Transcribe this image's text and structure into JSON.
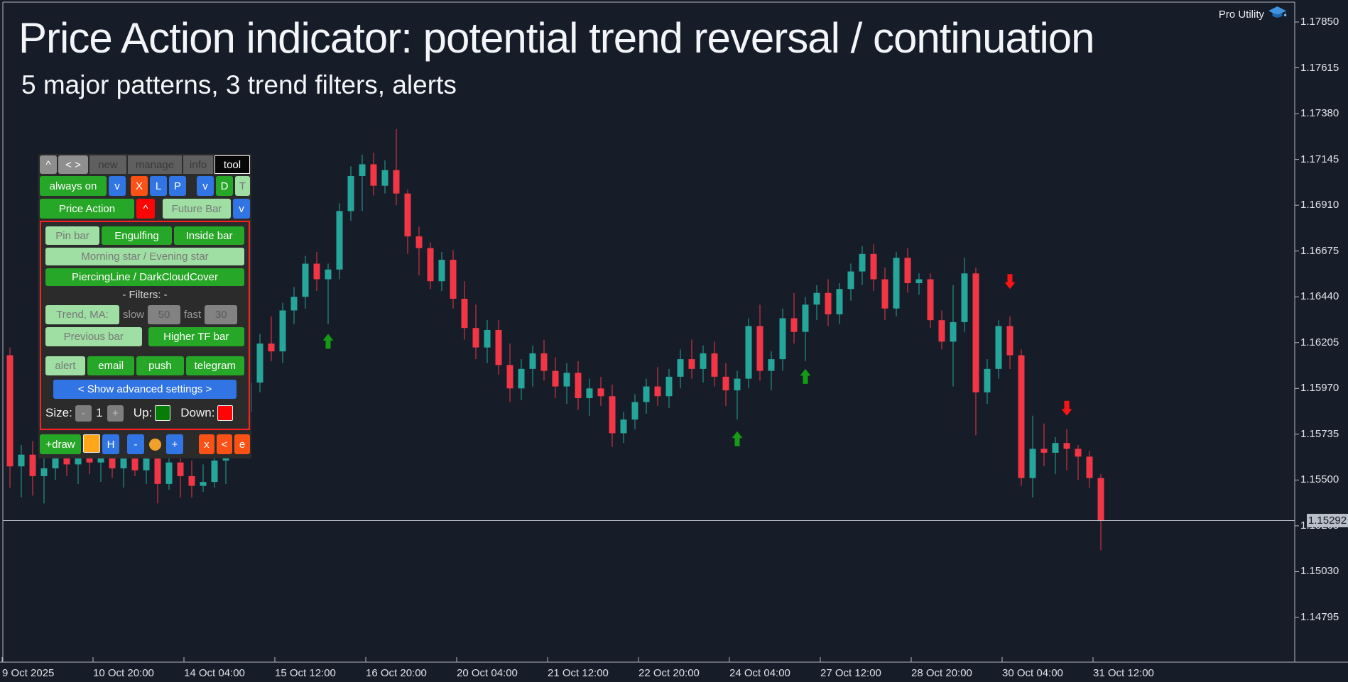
{
  "header": {
    "title": "Price Action indicator: potential trend reversal / continuation",
    "subtitle": "5 major patterns, 3 trend filters, alerts"
  },
  "watermark": {
    "label": "Pro Utility"
  },
  "panel": {
    "nav": {
      "collapse": "^",
      "move": "< >",
      "tab_new": "new",
      "tab_manage": "manage",
      "tab_info": "info",
      "tab_tool": "tool"
    },
    "toggles": {
      "always_on": "always on",
      "dd1": "v",
      "x": "X",
      "l": "L",
      "p": "P",
      "dd2": "v",
      "d": "D",
      "t": "T"
    },
    "main": {
      "price_action": "Price Action",
      "collapse": "^",
      "future_bar": "Future Bar",
      "dd": "v"
    },
    "patterns": {
      "pin_bar": "Pin bar",
      "engulfing": "Engulfing",
      "inside_bar": "Inside bar",
      "morning_evening_star": "Morning star / Evening star",
      "piercing_darkcloud": "PiercingLine / DarkCloudCover"
    },
    "filters": {
      "heading": "-  Filters:  -",
      "trend_ma": "Trend, MA:",
      "slow_label": "slow",
      "slow_value": "50",
      "fast_label": "fast",
      "fast_value": "30",
      "previous_bar": "Previous bar",
      "higher_tf": "Higher TF bar"
    },
    "alerts": {
      "alert": "alert",
      "email": "email",
      "push": "push",
      "telegram": "telegram"
    },
    "advanced_label": "< Show advanced settings >",
    "size_row": {
      "label": "Size:",
      "minus": "-",
      "value": "1",
      "plus": "+",
      "up_label": "Up:",
      "up_color": "#077d07",
      "down_label": "Down:",
      "down_color": "#ff0404"
    },
    "draw_row": {
      "draw": "+draw",
      "swatch_color": "#ffa718",
      "h": "H",
      "minus": "-",
      "dot_color": "#efa12c",
      "plus": "+",
      "x": "x",
      "back": "<",
      "e": "e"
    }
  },
  "chart_data": {
    "type": "candlestick",
    "view": {
      "price_top": 1.1785,
      "price_bottom": 1.14795
    },
    "price_axis": {
      "ticks": [
        "1.17850",
        "1.17615",
        "1.17380",
        "1.17145",
        "1.16910",
        "1.16675",
        "1.16440",
        "1.16205",
        "1.15970",
        "1.15735",
        "1.15500",
        "1.15265",
        "1.15030",
        "1.14795"
      ],
      "current_price": "1.15292"
    },
    "time_axis": {
      "ticks": [
        {
          "label": "9 Oct 2025",
          "index": 0
        },
        {
          "label": "10 Oct 20:00",
          "index": 8
        },
        {
          "label": "14 Oct 04:00",
          "index": 16
        },
        {
          "label": "15 Oct 12:00",
          "index": 24
        },
        {
          "label": "16 Oct 20:00",
          "index": 32
        },
        {
          "label": "20 Oct 04:00",
          "index": 40
        },
        {
          "label": "21 Oct 12:00",
          "index": 48
        },
        {
          "label": "22 Oct 20:00",
          "index": 56
        },
        {
          "label": "24 Oct 04:00",
          "index": 64
        },
        {
          "label": "27 Oct 12:00",
          "index": 72
        },
        {
          "label": "28 Oct 20:00",
          "index": 80
        },
        {
          "label": "30 Oct 04:00",
          "index": 88
        },
        {
          "label": "31 Oct 12:00",
          "index": 96
        }
      ]
    },
    "candles": [
      [
        1.1614,
        1.1618,
        1.1546,
        1.1557
      ],
      [
        1.1557,
        1.1568,
        1.1541,
        1.1563
      ],
      [
        1.1563,
        1.157,
        1.1542,
        1.1552
      ],
      [
        1.1552,
        1.1561,
        1.1538,
        1.1556
      ],
      [
        1.1556,
        1.1568,
        1.155,
        1.1562
      ],
      [
        1.1562,
        1.1572,
        1.1552,
        1.1558
      ],
      [
        1.1558,
        1.1566,
        1.1548,
        1.1563
      ],
      [
        1.1563,
        1.1571,
        1.1553,
        1.1559
      ],
      [
        1.1559,
        1.157,
        1.1549,
        1.1565
      ],
      [
        1.1565,
        1.1574,
        1.1551,
        1.1556
      ],
      [
        1.1556,
        1.1568,
        1.1546,
        1.1561
      ],
      [
        1.1561,
        1.157,
        1.1552,
        1.1555
      ],
      [
        1.1555,
        1.1566,
        1.1548,
        1.1561
      ],
      [
        1.1561,
        1.1568,
        1.1538,
        1.1548
      ],
      [
        1.1548,
        1.1563,
        1.1545,
        1.1559
      ],
      [
        1.1559,
        1.1567,
        1.1541,
        1.1552
      ],
      [
        1.1552,
        1.156,
        1.1541,
        1.1547
      ],
      [
        1.1547,
        1.1558,
        1.1544,
        1.1549
      ],
      [
        1.1549,
        1.1564,
        1.1546,
        1.156
      ],
      [
        1.156,
        1.1578,
        1.1548,
        1.1573
      ],
      [
        1.1573,
        1.159,
        1.1566,
        1.1585
      ],
      [
        1.1585,
        1.1605,
        1.158,
        1.16
      ],
      [
        1.16,
        1.1625,
        1.1595,
        1.162
      ],
      [
        1.162,
        1.1634,
        1.1611,
        1.1616
      ],
      [
        1.1616,
        1.1641,
        1.161,
        1.1637
      ],
      [
        1.1637,
        1.1649,
        1.163,
        1.1644
      ],
      [
        1.1644,
        1.1665,
        1.1638,
        1.1661
      ],
      [
        1.1661,
        1.1667,
        1.1647,
        1.1653
      ],
      [
        1.1653,
        1.1661,
        1.163,
        1.1658
      ],
      [
        1.1658,
        1.1692,
        1.1653,
        1.1688
      ],
      [
        1.1688,
        1.1711,
        1.1683,
        1.1706
      ],
      [
        1.1706,
        1.1717,
        1.1688,
        1.1712
      ],
      [
        1.1712,
        1.1718,
        1.1696,
        1.1701
      ],
      [
        1.1701,
        1.1714,
        1.1697,
        1.1709
      ],
      [
        1.1709,
        1.173,
        1.1691,
        1.1697
      ],
      [
        1.1697,
        1.1699,
        1.1666,
        1.1675
      ],
      [
        1.1675,
        1.168,
        1.1655,
        1.1669
      ],
      [
        1.1669,
        1.1672,
        1.1648,
        1.1652
      ],
      [
        1.1652,
        1.1667,
        1.1647,
        1.1663
      ],
      [
        1.1663,
        1.1668,
        1.1638,
        1.1643
      ],
      [
        1.1643,
        1.1652,
        1.1622,
        1.1628
      ],
      [
        1.1628,
        1.164,
        1.1612,
        1.1618
      ],
      [
        1.1618,
        1.1632,
        1.161,
        1.1627
      ],
      [
        1.1627,
        1.1632,
        1.1604,
        1.1609
      ],
      [
        1.1609,
        1.162,
        1.159,
        1.1597
      ],
      [
        1.1597,
        1.1612,
        1.1591,
        1.1607
      ],
      [
        1.1607,
        1.1619,
        1.1598,
        1.1615
      ],
      [
        1.1615,
        1.1622,
        1.1601,
        1.1606
      ],
      [
        1.1606,
        1.1613,
        1.1592,
        1.1598
      ],
      [
        1.1598,
        1.161,
        1.1589,
        1.1605
      ],
      [
        1.1605,
        1.1611,
        1.1586,
        1.1592
      ],
      [
        1.1592,
        1.1602,
        1.1583,
        1.1597
      ],
      [
        1.1597,
        1.1603,
        1.1588,
        1.1593
      ],
      [
        1.1593,
        1.1599,
        1.1567,
        1.1574
      ],
      [
        1.1574,
        1.1585,
        1.1569,
        1.1581
      ],
      [
        1.1581,
        1.1594,
        1.1576,
        1.159
      ],
      [
        1.159,
        1.1602,
        1.1584,
        1.1598
      ],
      [
        1.1598,
        1.1608,
        1.1588,
        1.1593
      ],
      [
        1.1593,
        1.1607,
        1.1587,
        1.1603
      ],
      [
        1.1603,
        1.1617,
        1.1597,
        1.1612
      ],
      [
        1.1612,
        1.1622,
        1.1602,
        1.1607
      ],
      [
        1.1607,
        1.1619,
        1.16,
        1.1615
      ],
      [
        1.1615,
        1.1621,
        1.1598,
        1.1603
      ],
      [
        1.1603,
        1.161,
        1.1588,
        1.1596
      ],
      [
        1.1596,
        1.1606,
        1.1581,
        1.1602
      ],
      [
        1.1602,
        1.1633,
        1.1597,
        1.1629
      ],
      [
        1.1629,
        1.164,
        1.1601,
        1.1606
      ],
      [
        1.1606,
        1.1616,
        1.1596,
        1.1612
      ],
      [
        1.1612,
        1.1638,
        1.1606,
        1.1633
      ],
      [
        1.1633,
        1.1646,
        1.162,
        1.1626
      ],
      [
        1.1626,
        1.1644,
        1.1611,
        1.164
      ],
      [
        1.164,
        1.165,
        1.1632,
        1.1646
      ],
      [
        1.1646,
        1.1653,
        1.1629,
        1.1635
      ],
      [
        1.1635,
        1.1651,
        1.163,
        1.1648
      ],
      [
        1.1648,
        1.1661,
        1.1642,
        1.1657
      ],
      [
        1.1657,
        1.167,
        1.165,
        1.1666
      ],
      [
        1.1666,
        1.1671,
        1.1647,
        1.1653
      ],
      [
        1.1653,
        1.1659,
        1.1632,
        1.1638
      ],
      [
        1.1638,
        1.1667,
        1.1634,
        1.1664
      ],
      [
        1.1664,
        1.1669,
        1.1646,
        1.1651
      ],
      [
        1.1651,
        1.1656,
        1.1645,
        1.1653
      ],
      [
        1.1653,
        1.1656,
        1.1628,
        1.1632
      ],
      [
        1.1632,
        1.1637,
        1.1617,
        1.1621
      ],
      [
        1.1621,
        1.165,
        1.1598,
        1.1631
      ],
      [
        1.1631,
        1.1664,
        1.1626,
        1.1656
      ],
      [
        1.1656,
        1.1659,
        1.1573,
        1.1595
      ],
      [
        1.1595,
        1.1612,
        1.1589,
        1.1607
      ],
      [
        1.1607,
        1.1632,
        1.1602,
        1.1629
      ],
      [
        1.1629,
        1.1634,
        1.1607,
        1.1614
      ],
      [
        1.1614,
        1.1617,
        1.1547,
        1.1551
      ],
      [
        1.1551,
        1.1583,
        1.1541,
        1.1566
      ],
      [
        1.1566,
        1.1579,
        1.1557,
        1.1564
      ],
      [
        1.1564,
        1.1572,
        1.1553,
        1.1569
      ],
      [
        1.1569,
        1.1576,
        1.1555,
        1.1566
      ],
      [
        1.1566,
        1.1568,
        1.155,
        1.1562
      ],
      [
        1.1562,
        1.1565,
        1.1546,
        1.1551
      ],
      [
        1.1551,
        1.1553,
        1.1514,
        1.1529
      ]
    ],
    "signals": [
      {
        "direction": "up",
        "index": 28,
        "price": 1.1625
      },
      {
        "direction": "up",
        "index": 64,
        "price": 1.1575
      },
      {
        "direction": "up",
        "index": 70,
        "price": 1.1607
      },
      {
        "direction": "down",
        "index": 88,
        "price": 1.1648
      },
      {
        "direction": "down",
        "index": 93,
        "price": 1.1583
      }
    ],
    "colors": {
      "up": "#26a69a",
      "down": "#f23645",
      "up_arrow": "#159b15",
      "down_arrow": "#fb1414",
      "frame": "#b4b8c0",
      "current_line": "#b7bcc6",
      "badge_bg": "#b9bfc9"
    }
  }
}
